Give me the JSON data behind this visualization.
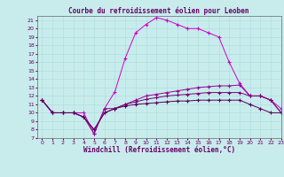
{
  "title": "Courbe du refroidissement éolien pour Leoben",
  "xlabel": "Windchill (Refroidissement éolien,°C)",
  "background_color": "#c8ecec",
  "xlim": [
    -0.5,
    23
  ],
  "ylim": [
    7,
    21.5
  ],
  "yticks": [
    7,
    8,
    9,
    10,
    11,
    12,
    13,
    14,
    15,
    16,
    17,
    18,
    19,
    20,
    21
  ],
  "xticks": [
    0,
    1,
    2,
    3,
    4,
    5,
    6,
    7,
    8,
    9,
    10,
    11,
    12,
    13,
    14,
    15,
    16,
    17,
    18,
    19,
    20,
    21,
    22,
    23
  ],
  "series": [
    {
      "x": [
        0,
        1,
        2,
        3,
        4,
        5,
        6,
        7,
        8,
        9,
        10,
        11,
        12,
        13,
        14,
        15,
        16,
        17,
        18,
        19,
        20,
        21,
        22,
        23
      ],
      "y": [
        11.5,
        10.0,
        10.0,
        10.0,
        10.0,
        7.5,
        10.5,
        12.5,
        16.5,
        19.5,
        20.5,
        21.3,
        21.0,
        20.5,
        20.0,
        20.0,
        19.5,
        19.0,
        16.0,
        13.5,
        12.0,
        12.0,
        11.5,
        10.5
      ],
      "color": "#cc00cc",
      "marker": "+"
    },
    {
      "x": [
        0,
        1,
        2,
        3,
        4,
        5,
        6,
        7,
        8,
        9,
        10,
        11,
        12,
        13,
        14,
        15,
        16,
        17,
        18,
        19,
        20,
        21,
        22,
        23
      ],
      "y": [
        11.5,
        10.0,
        10.0,
        10.0,
        9.5,
        7.5,
        10.5,
        10.5,
        11.0,
        11.5,
        12.0,
        12.2,
        12.4,
        12.6,
        12.8,
        13.0,
        13.1,
        13.2,
        13.2,
        13.3,
        12.0,
        12.0,
        11.5,
        10.0
      ],
      "color": "#990099",
      "marker": "+"
    },
    {
      "x": [
        0,
        1,
        2,
        3,
        4,
        5,
        6,
        7,
        8,
        9,
        10,
        11,
        12,
        13,
        14,
        15,
        16,
        17,
        18,
        19,
        20,
        21,
        22,
        23
      ],
      "y": [
        11.5,
        10.0,
        10.0,
        10.0,
        9.5,
        8.0,
        10.0,
        10.5,
        11.0,
        11.3,
        11.6,
        11.8,
        12.0,
        12.1,
        12.2,
        12.3,
        12.4,
        12.4,
        12.4,
        12.4,
        12.0,
        12.0,
        11.5,
        10.0
      ],
      "color": "#770077",
      "marker": "+"
    },
    {
      "x": [
        0,
        1,
        2,
        3,
        4,
        5,
        6,
        7,
        8,
        9,
        10,
        11,
        12,
        13,
        14,
        15,
        16,
        17,
        18,
        19,
        20,
        21,
        22,
        23
      ],
      "y": [
        11.5,
        10.0,
        10.0,
        10.0,
        9.5,
        8.0,
        10.0,
        10.5,
        10.8,
        11.0,
        11.1,
        11.2,
        11.3,
        11.4,
        11.4,
        11.5,
        11.5,
        11.5,
        11.5,
        11.5,
        11.0,
        10.5,
        10.0,
        10.0
      ],
      "color": "#550055",
      "marker": "+"
    }
  ],
  "grid_color": "#aadddd",
  "tick_fontsize": 4.5,
  "label_fontsize": 5.5,
  "title_fontsize": 5.5
}
